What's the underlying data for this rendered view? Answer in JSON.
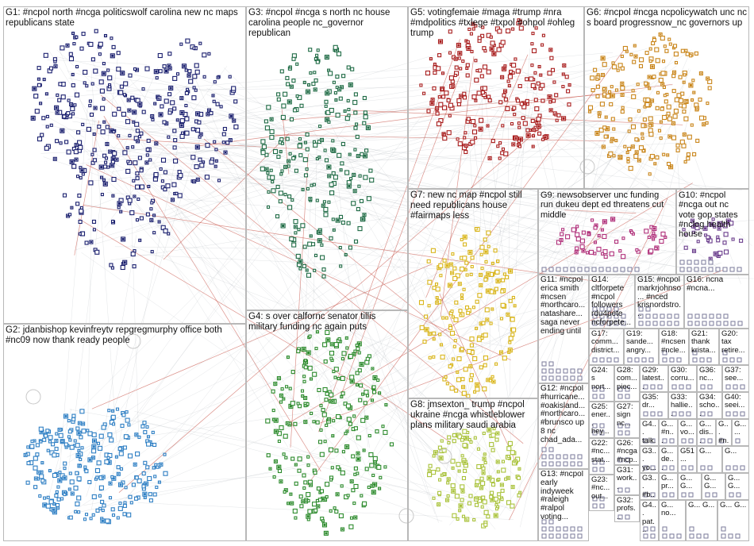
{
  "groups": [
    {
      "id": "G1",
      "label": "G1: #ncpol north #ncga politicswolf carolina new nc maps republicans state",
      "color": "#1a1f6e"
    },
    {
      "id": "G2",
      "label": "G2: jdanbishop kevinfreytv repgregmurphy office both #nc09 now thank ready people",
      "color": "#2e7fc4"
    },
    {
      "id": "G3",
      "label": "G3: #ncpol #ncga s north nc house carolina people nc_governor republican",
      "color": "#1f6b45"
    },
    {
      "id": "G4",
      "label": "G4: s over calfornc senator tillis military funding nc again puts",
      "color": "#2c8a2c"
    },
    {
      "id": "G5",
      "label": "G5: votingfemaie #maga #trump #nra #mdpolitics #txlege #txpol #ohpol #ohleg trump",
      "color": "#a81d1d"
    },
    {
      "id": "G6",
      "label": "G6: #ncpol #ncga ncpolicywatch unc nc s board progressnow_nc governors up",
      "color": "#c9851a"
    },
    {
      "id": "G7",
      "label": "G7: new nc map #ncpol still need republicans house #fairmaps less",
      "color": "#d9b51a"
    },
    {
      "id": "G8",
      "label": "G8: jmsexton_ trump #ncpol ukraine #ncga whistleblower plans military saudi arabia",
      "color": "#a9c23a"
    },
    {
      "id": "G9",
      "label": "G9: newsobserver unc funding run dukeu dept ed threatens cut middle",
      "color": "#b0307a"
    },
    {
      "id": "G10",
      "label": "G10: #ncpol #ncga out nc vote gop states #ncleg health house",
      "color": "#6a3d8c"
    },
    {
      "id": "G11",
      "label": "G11: #ncpol erica smith #ncsen #northcaro... natashare... saga never ending until",
      "color": "#555555"
    },
    {
      "id": "G12",
      "label": "G12: #ncpol #hurricane... #oakisland... #northcaro... #brunsco up 8 nc chad_ada...",
      "color": "#555555"
    },
    {
      "id": "G13",
      "label": "G13: #ncpol early indyweek #raleigh #ralpol voting...",
      "color": "#555555"
    },
    {
      "id": "G14",
      "label": "G14: cltforpete #ncpol followers rdu4pete ncforpete...",
      "color": "#555555"
    },
    {
      "id": "G15",
      "label": "G15: #ncpol markrjohnso... #nced krisnordstro...",
      "color": "#555555"
    },
    {
      "id": "G16",
      "label": "G16: ncna #ncna...",
      "color": "#555555"
    },
    {
      "id": "G17",
      "label": "G17: comm... district...",
      "color": "#555555"
    },
    {
      "id": "G19",
      "label": "G19: sande... angry...",
      "color": "#555555"
    },
    {
      "id": "G18",
      "label": "G18: #ncsen #ncle...",
      "color": "#555555"
    },
    {
      "id": "G21",
      "label": "G21: thank krista...",
      "color": "#555555"
    },
    {
      "id": "G20",
      "label": "G20: tax retire...",
      "color": "#555555"
    },
    {
      "id": "G24",
      "label": "G24: s nort...",
      "color": "#555555"
    },
    {
      "id": "G28",
      "label": "G28: com... piec...",
      "color": "#555555"
    },
    {
      "id": "G29",
      "label": "G29: latest...",
      "color": "#555555"
    },
    {
      "id": "G30",
      "label": "G30: corru...",
      "color": "#555555"
    },
    {
      "id": "G36",
      "label": "G36: nc...",
      "color": "#555555"
    },
    {
      "id": "G37",
      "label": "G37: see...",
      "color": "#555555"
    },
    {
      "id": "G27",
      "label": "G27: sign nc...",
      "color": "#555555"
    },
    {
      "id": "G35",
      "label": "G35: dr...",
      "color": "#555555"
    },
    {
      "id": "G33",
      "label": "G33: hallie...",
      "color": "#555555"
    },
    {
      "id": "G34",
      "label": "G34: scho...",
      "color": "#555555"
    },
    {
      "id": "G40",
      "label": "G40: seei...",
      "color": "#555555"
    },
    {
      "id": "G25",
      "label": "G25: ener... hey...",
      "color": "#555555"
    },
    {
      "id": "G4x",
      "label": "G4... talk...",
      "color": "#555555"
    },
    {
      "id": "G4y",
      "label": "G... #n...",
      "color": "#555555"
    },
    {
      "id": "G4z",
      "label": "G... vo...",
      "color": "#555555"
    },
    {
      "id": "G4w",
      "label": "G... dis...",
      "color": "#555555"
    },
    {
      "id": "G4v",
      "label": "G... #n...",
      "color": "#555555"
    },
    {
      "id": "G4u",
      "label": "G... ...",
      "color": "#555555"
    },
    {
      "id": "G26",
      "label": "G26: #ncga #ncp...",
      "color": "#555555"
    },
    {
      "id": "G38",
      "label": "G3... yo...",
      "color": "#555555"
    },
    {
      "id": "G38b",
      "label": "G... de...",
      "color": "#555555"
    },
    {
      "id": "G51",
      "label": "G51...",
      "color": "#555555"
    },
    {
      "id": "G5a",
      "label": "G...",
      "color": "#555555"
    },
    {
      "id": "G5b",
      "label": "G...",
      "color": "#555555"
    },
    {
      "id": "G22",
      "label": "G22: #nc... stat...",
      "color": "#555555"
    },
    {
      "id": "G31",
      "label": "G31: work...",
      "color": "#555555"
    },
    {
      "id": "G3a",
      "label": "G3... #b...",
      "color": "#555555"
    },
    {
      "id": "G3b",
      "label": "G... pr...",
      "color": "#555555"
    },
    {
      "id": "G3c",
      "label": "G... G...",
      "color": "#555555"
    },
    {
      "id": "G3d",
      "label": "G... G...",
      "color": "#555555"
    },
    {
      "id": "G3e",
      "label": "G... G...",
      "color": "#555555"
    },
    {
      "id": "G23",
      "label": "G23: #nc... out...",
      "color": "#555555"
    },
    {
      "id": "G32",
      "label": "G32: profs...",
      "color": "#555555"
    },
    {
      "id": "G4a",
      "label": "G4... pat...",
      "color": "#555555"
    },
    {
      "id": "G4b",
      "label": "G... no...",
      "color": "#555555"
    },
    {
      "id": "G4c",
      "label": "G... G...",
      "color": "#555555"
    },
    {
      "id": "G4d",
      "label": "G... G...",
      "color": "#555555"
    }
  ],
  "palette": {
    "edge": "#9aa0a8",
    "edge_red": "#c0392b",
    "border": "#b8b8b8"
  }
}
